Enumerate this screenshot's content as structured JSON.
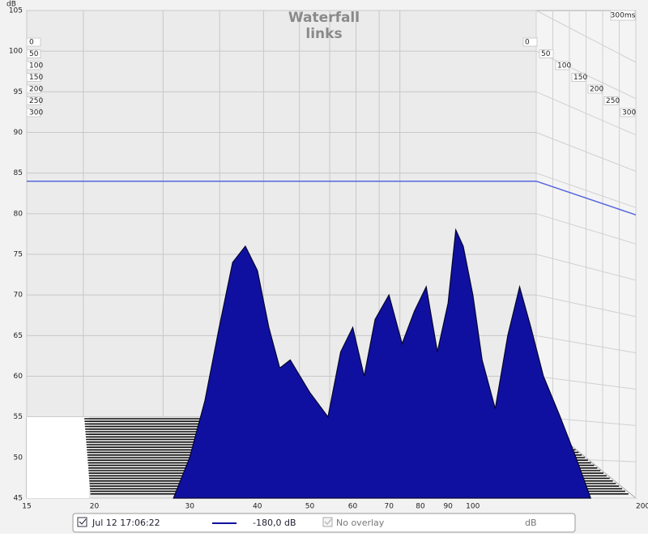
{
  "chart_data": {
    "type": "waterfall",
    "title": "Waterfall",
    "subtitle": "links",
    "ylabel": "dB",
    "xscale": "log",
    "xlim": [
      15,
      200
    ],
    "xticks": [
      15,
      20,
      30,
      40,
      50,
      60,
      70,
      80,
      90,
      100,
      {
        "value": 200,
        "label": "200 Hz"
      }
    ],
    "ylim": [
      45,
      105
    ],
    "yticks": [
      45,
      50,
      55,
      60,
      65,
      70,
      75,
      80,
      85,
      90,
      95,
      100,
      105
    ],
    "zticks": [
      0,
      50,
      100,
      150,
      200,
      250,
      300
    ],
    "zlabel": "300ms",
    "reference_line": 84,
    "series": [
      {
        "name": "Jul 12 17:06:22",
        "color": "#1010a0",
        "x": [
          28,
          30,
          32,
          34,
          36,
          38,
          40,
          42,
          44,
          46,
          50,
          54,
          57,
          60,
          63,
          66,
          70,
          74,
          78,
          82,
          86,
          90,
          93,
          96,
          100,
          104,
          110,
          116,
          122,
          128,
          135,
          145,
          155,
          165
        ],
        "values": [
          45,
          50,
          57,
          66,
          74,
          76,
          73,
          66,
          61,
          62,
          58,
          55,
          63,
          66,
          60,
          67,
          70,
          64,
          68,
          71,
          63,
          69,
          78,
          76,
          70,
          62,
          56,
          65,
          71,
          66,
          60,
          55,
          50,
          45
        ]
      }
    ],
    "legend": {
      "level": "-180,0 dB",
      "overlay": "No overlay",
      "unit": "dB"
    }
  }
}
